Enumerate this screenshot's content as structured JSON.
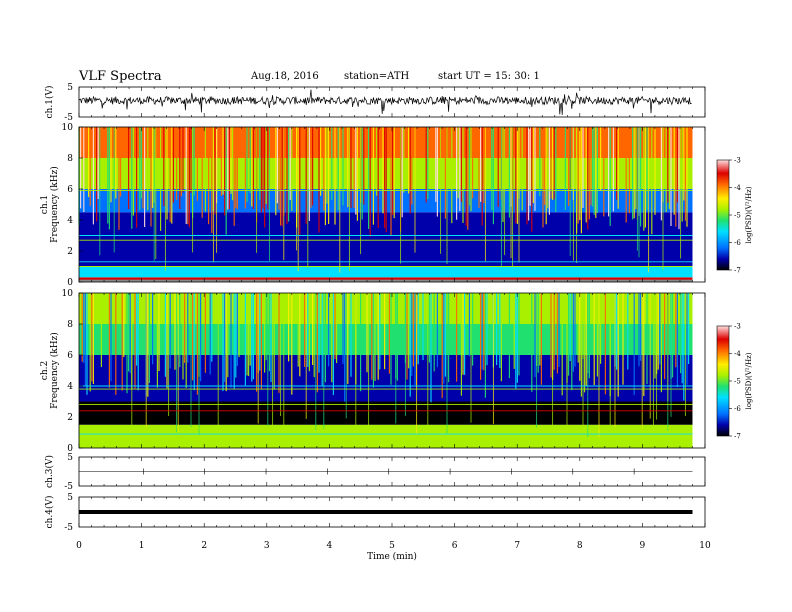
{
  "header": {
    "title": "VLF  Spectra",
    "date": "Aug.18, 2016",
    "station": "station=ATH",
    "start": "start  UT  =   15: 30: 1"
  },
  "xaxis": {
    "label": "Time  (min)",
    "ticks": [
      "0",
      "1",
      "2",
      "3",
      "4",
      "5",
      "6",
      "7",
      "8",
      "9",
      "10"
    ],
    "range": [
      0,
      10
    ],
    "data_end": 9.8
  },
  "panels": {
    "ch1_wave": {
      "label": "ch.1(V)",
      "ticks": [
        "5",
        "-5"
      ],
      "range": [
        -5,
        5
      ]
    },
    "ch1_spec": {
      "label_top": "ch.1",
      "label_bottom": "Frequency  (kHz)",
      "ticks": [
        "0",
        "2",
        "4",
        "6",
        "8",
        "10"
      ],
      "range": [
        0,
        10
      ]
    },
    "ch2_spec": {
      "label_top": "ch.2",
      "label_bottom": "Frequency  (kHz)",
      "ticks": [
        "0",
        "2",
        "4",
        "6",
        "8",
        "10"
      ],
      "range": [
        0,
        10
      ]
    },
    "ch3_wave": {
      "label": "ch.3(V)",
      "ticks": [
        "5",
        "-5"
      ],
      "range": [
        -5,
        5
      ]
    },
    "ch4_wave": {
      "label": "ch.4(V)",
      "ticks": [
        "5",
        "-5"
      ],
      "range": [
        -5,
        5
      ]
    }
  },
  "colorbar": {
    "label": "log(PSD)(V²/Hz)",
    "ticks": [
      "-3",
      "-4",
      "-5",
      "-6",
      "-7"
    ],
    "range": [
      -7,
      -3
    ],
    "colors": [
      "#000000",
      "#0000aa",
      "#0070ff",
      "#00e0ff",
      "#20e070",
      "#a8f000",
      "#ffee00",
      "#ff6600",
      "#dd0000",
      "#ffe0e0"
    ]
  },
  "chart_data": [
    {
      "type": "line",
      "title": "",
      "ylabel": "ch.1(V)",
      "xlabel": "",
      "xlim": [
        0,
        10
      ],
      "ylim": [
        -5,
        5
      ],
      "series": [
        {
          "description_mean_V": 0.5,
          "amplitude_V": 1.5
        }
      ]
    },
    {
      "type": "heatmap",
      "ylabel": "Frequency (kHz)",
      "channel": "ch.1",
      "xlim": [
        0,
        10
      ],
      "ylim": [
        0,
        10
      ],
      "color_range": [
        -7,
        -3
      ],
      "band_levels_logPSD": [
        {
          "from_kHz": 0.0,
          "to_kHz": 0.3,
          "level": -3.8
        },
        {
          "from_kHz": 0.3,
          "to_kHz": 1.0,
          "level": -5.4
        },
        {
          "from_kHz": 1.0,
          "to_kHz": 4.5,
          "level": -6.6
        },
        {
          "from_kHz": 4.5,
          "to_kHz": 6.0,
          "level": -6.0
        },
        {
          "from_kHz": 6.0,
          "to_kHz": 8.0,
          "level": -5.0
        },
        {
          "from_kHz": 8.0,
          "to_kHz": 10.0,
          "level": -4.2
        }
      ]
    },
    {
      "type": "heatmap",
      "ylabel": "Frequency (kHz)",
      "channel": "ch.2",
      "xlim": [
        0,
        10
      ],
      "ylim": [
        0,
        10
      ],
      "color_range": [
        -7,
        -3
      ],
      "band_levels_logPSD": [
        {
          "from_kHz": 0.0,
          "to_kHz": 1.5,
          "level": -5.0
        },
        {
          "from_kHz": 1.5,
          "to_kHz": 3.0,
          "level": -6.9
        },
        {
          "from_kHz": 3.0,
          "to_kHz": 6.0,
          "level": -6.6
        },
        {
          "from_kHz": 6.0,
          "to_kHz": 8.0,
          "level": -5.3
        },
        {
          "from_kHz": 8.0,
          "to_kHz": 10.0,
          "level": -5.0
        }
      ]
    },
    {
      "type": "line",
      "ylabel": "ch.3(V)",
      "xlim": [
        0,
        10
      ],
      "ylim": [
        -5,
        5
      ],
      "series": [
        {
          "constant_V": 0.0
        }
      ]
    },
    {
      "type": "line",
      "ylabel": "ch.4(V)",
      "xlim": [
        0,
        10
      ],
      "ylim": [
        -5,
        5
      ],
      "series": [
        {
          "constant_V": 0.0
        }
      ]
    }
  ]
}
